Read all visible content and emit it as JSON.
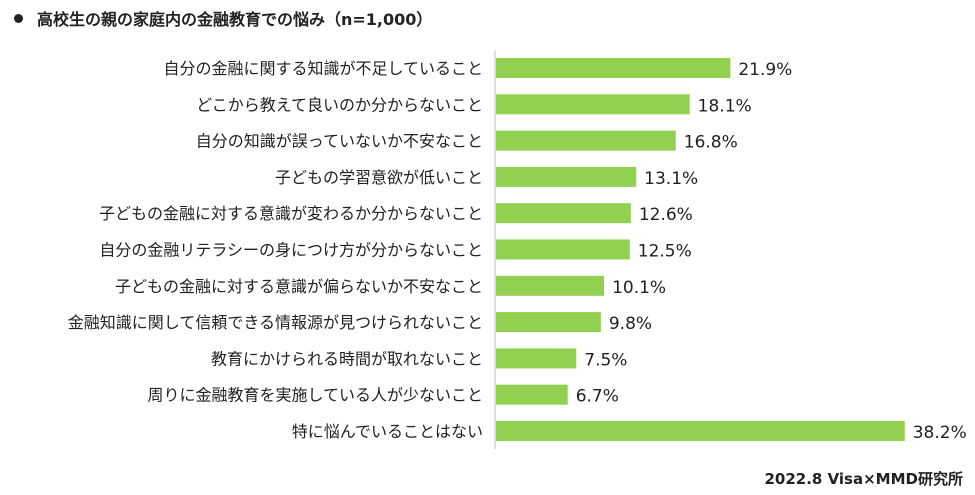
{
  "title": "高校生の親の家庭内の金融教育での悩み（n=1,000）",
  "source": "2022.8 Visa×MMD研究所",
  "colors": {
    "bar": "#92d050",
    "text": "#222222",
    "axis": "#bfbfbf"
  },
  "chart_data": {
    "type": "bar",
    "orientation": "horizontal",
    "title": "高校生の親の家庭内の金融教育での悩み（n=1,000）",
    "unit": "%",
    "categories": [
      "自分の金融に関する知識が不足していること",
      "どこから教えて良いのか分からないこと",
      "自分の知識が誤っていないか不安なこと",
      "子どもの学習意欲が低いこと",
      "子どもの金融に対する意識が変わるか分からないこと",
      "自分の金融リテラシーの身につけ方が分からないこと",
      "子どもの金融に対する意識が偏らないか不安なこと",
      "金融知識に関して信頼できる情報源が見つけられないこと",
      "教育にかけられる時間が取れないこと",
      "周りに金融教育を実施している人が少ないこと",
      "特に悩んでいることはない"
    ],
    "values": [
      21.9,
      18.1,
      16.8,
      13.1,
      12.6,
      12.5,
      10.1,
      9.8,
      7.5,
      6.7,
      38.2
    ],
    "value_labels": [
      "21.9%",
      "18.1%",
      "16.8%",
      "13.1%",
      "12.6%",
      "12.5%",
      "10.1%",
      "9.8%",
      "7.5%",
      "6.7%",
      "38.2%"
    ],
    "xlim": [
      0,
      40
    ],
    "grid": false,
    "legend": "none"
  }
}
